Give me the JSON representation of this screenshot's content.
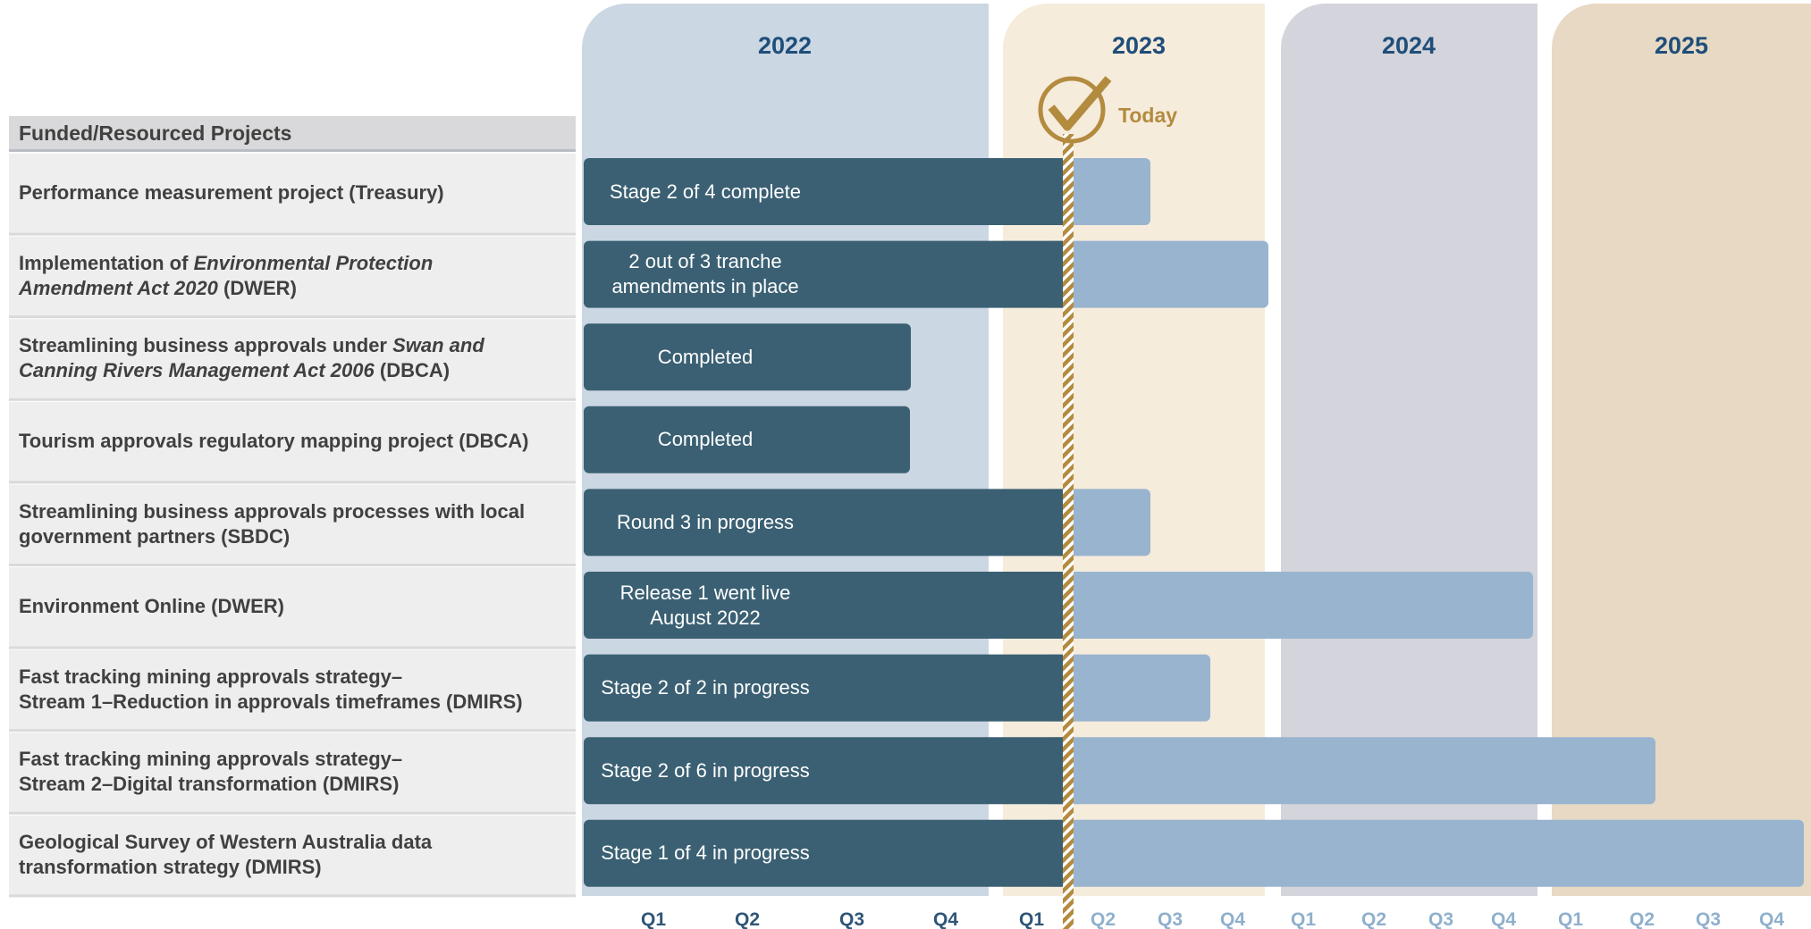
{
  "header": {
    "title": "Funded/Resourced Projects"
  },
  "years": [
    "2022",
    "2023",
    "2024",
    "2025"
  ],
  "quarters": [
    "Q1",
    "Q2",
    "Q3",
    "Q4",
    "Q1",
    "Q2",
    "Q3",
    "Q4",
    "Q1",
    "Q2",
    "Q3",
    "Q4",
    "Q1",
    "Q2",
    "Q3",
    "Q4"
  ],
  "today": "Today",
  "rows": [
    {
      "label": [
        [
          {
            "text": "Performance measurement project (Treasury)"
          }
        ]
      ],
      "status": [
        "Stage 2 of 4 complete"
      ]
    },
    {
      "label": [
        [
          {
            "text": "Implementation of "
          },
          {
            "text": "Environmental Protection",
            "italic": true
          }
        ],
        [
          {
            "text": "Amendment Act 2020",
            "italic": true
          },
          {
            "text": " (DWER)"
          }
        ]
      ],
      "status": [
        "2 out of 3 tranche",
        "amendments in place"
      ]
    },
    {
      "label": [
        [
          {
            "text": "Streamlining business approvals under "
          },
          {
            "text": "Swan and",
            "italic": true
          }
        ],
        [
          {
            "text": "Canning Rivers Management Act 2006",
            "italic": true
          },
          {
            "text": " (DBCA)"
          }
        ]
      ],
      "status": [
        "Completed"
      ]
    },
    {
      "label": [
        [
          {
            "text": "Tourism approvals regulatory mapping project (DBCA)"
          }
        ]
      ],
      "status": [
        "Completed"
      ]
    },
    {
      "label": [
        [
          {
            "text": "Streamlining business approvals processes with local"
          }
        ],
        [
          {
            "text": "government partners (SBDC)"
          }
        ]
      ],
      "status": [
        "Round 3 in progress"
      ]
    },
    {
      "label": [
        [
          {
            "text": "Environment Online (DWER)"
          }
        ]
      ],
      "status": [
        "Release 1 went live",
        "August 2022"
      ]
    },
    {
      "label": [
        [
          {
            "text": "Fast tracking mining approvals strategy–"
          }
        ],
        [
          {
            "text": "Stream 1–Reduction in approvals timeframes (DMIRS)"
          }
        ]
      ],
      "status": [
        "Stage 2 of 2 in progress"
      ]
    },
    {
      "label": [
        [
          {
            "text": "Fast tracking mining approvals strategy–"
          }
        ],
        [
          {
            "text": "Stream 2–Digital transformation (DMIRS)"
          }
        ]
      ],
      "status": [
        "Stage 2 of 6 in progress"
      ]
    },
    {
      "label": [
        [
          {
            "text": "Geological Survey of Western Australia data"
          }
        ],
        [
          {
            "text": "transformation strategy (DMIRS)"
          }
        ]
      ],
      "status": [
        "Stage 1 of 4 in progress"
      ]
    }
  ]
}
